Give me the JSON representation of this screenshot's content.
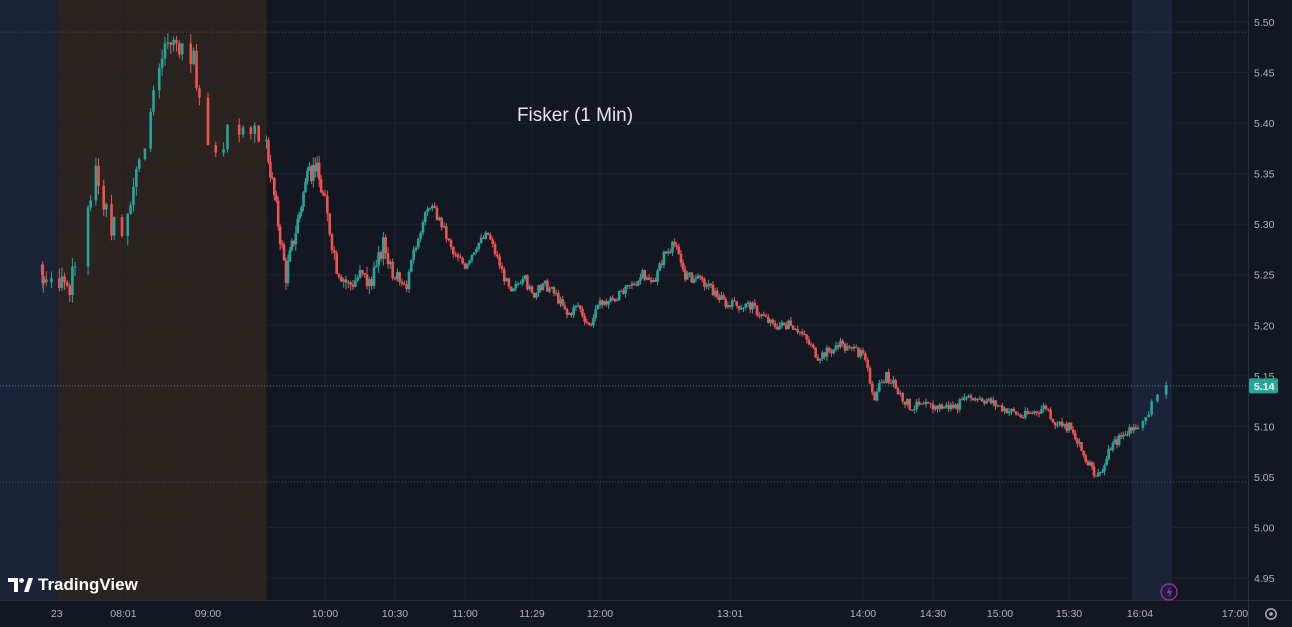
{
  "chart_data": {
    "type": "candlestick",
    "title": "Fisker (1 Min)",
    "ylim": [
      4.93,
      5.52
    ],
    "y_ticks": [
      "5.50",
      "5.45",
      "5.40",
      "5.35",
      "5.30",
      "5.25",
      "5.20",
      "5.15",
      "5.10",
      "5.05",
      "5.00",
      "4.95"
    ],
    "x_ticks": [
      "23",
      "08:01",
      "09:00",
      "10:00",
      "10:30",
      "11:00",
      "11:29",
      "12:00",
      "13:01",
      "14:00",
      "14:30",
      "15:00",
      "15:30",
      "16:04",
      "17:00"
    ],
    "sessions": [
      {
        "name": "overnight",
        "from": "04:00",
        "to": "07:10"
      },
      {
        "name": "pre-market",
        "from": "07:10",
        "to": "09:30"
      },
      {
        "name": "after-hours",
        "from": "16:00",
        "to": "16:15"
      }
    ],
    "reference_lines": [
      5.49,
      5.045
    ],
    "last_price": 5.14,
    "last_price_label": "5.14",
    "series_path": [
      [
        "04:00",
        5.25
      ],
      [
        "06:55",
        5.25
      ],
      [
        "07:10",
        5.25
      ],
      [
        "07:20",
        5.24
      ],
      [
        "07:30",
        5.28
      ],
      [
        "07:40",
        5.36
      ],
      [
        "07:50",
        5.3
      ],
      [
        "08:00",
        5.3
      ],
      [
        "08:10",
        5.35
      ],
      [
        "08:20",
        5.41
      ],
      [
        "08:30",
        5.48
      ],
      [
        "08:40",
        5.48
      ],
      [
        "08:50",
        5.46
      ],
      [
        "09:00",
        5.37
      ],
      [
        "09:15",
        5.4
      ],
      [
        "09:30",
        5.38
      ],
      [
        "09:40",
        5.25
      ],
      [
        "09:50",
        5.34
      ],
      [
        "09:55",
        5.36
      ],
      [
        "10:00",
        5.32
      ],
      [
        "10:05",
        5.26
      ],
      [
        "10:10",
        5.24
      ],
      [
        "10:15",
        5.25
      ],
      [
        "10:20",
        5.24
      ],
      [
        "10:25",
        5.28
      ],
      [
        "10:30",
        5.25
      ],
      [
        "10:35",
        5.24
      ],
      [
        "10:40",
        5.29
      ],
      [
        "10:45",
        5.32
      ],
      [
        "10:50",
        5.3
      ],
      [
        "10:55",
        5.27
      ],
      [
        "11:00",
        5.26
      ],
      [
        "11:05",
        5.28
      ],
      [
        "11:10",
        5.29
      ],
      [
        "11:15",
        5.26
      ],
      [
        "11:20",
        5.23
      ],
      [
        "11:25",
        5.25
      ],
      [
        "11:29",
        5.23
      ],
      [
        "11:35",
        5.24
      ],
      [
        "11:40",
        5.23
      ],
      [
        "11:45",
        5.21
      ],
      [
        "11:50",
        5.22
      ],
      [
        "11:55",
        5.2
      ],
      [
        "12:00",
        5.22
      ],
      [
        "12:10",
        5.23
      ],
      [
        "12:20",
        5.25
      ],
      [
        "12:25",
        5.24
      ],
      [
        "12:30",
        5.27
      ],
      [
        "12:35",
        5.28
      ],
      [
        "12:40",
        5.25
      ],
      [
        "12:50",
        5.24
      ],
      [
        "13:00",
        5.22
      ],
      [
        "13:01",
        5.22
      ],
      [
        "13:10",
        5.22
      ],
      [
        "13:20",
        5.2
      ],
      [
        "13:30",
        5.2
      ],
      [
        "13:40",
        5.17
      ],
      [
        "13:50",
        5.18
      ],
      [
        "14:00",
        5.17
      ],
      [
        "14:05",
        5.13
      ],
      [
        "14:10",
        5.15
      ],
      [
        "14:20",
        5.12
      ],
      [
        "14:30",
        5.12
      ],
      [
        "14:40",
        5.12
      ],
      [
        "14:50",
        5.13
      ],
      [
        "15:00",
        5.12
      ],
      [
        "15:10",
        5.11
      ],
      [
        "15:20",
        5.12
      ],
      [
        "15:25",
        5.1
      ],
      [
        "15:30",
        5.1
      ],
      [
        "15:35",
        5.08
      ],
      [
        "15:40",
        5.06
      ],
      [
        "15:45",
        5.05
      ],
      [
        "15:50",
        5.08
      ],
      [
        "15:55",
        5.09
      ],
      [
        "16:00",
        5.1
      ],
      [
        "16:04",
        5.1
      ],
      [
        "16:08",
        5.12
      ],
      [
        "16:12",
        5.14
      ]
    ]
  },
  "header": {
    "title": "Fisker (1 Min)"
  },
  "brand": {
    "logo_text": "TradingView",
    "logo_icon": "tradingview-logo-icon"
  },
  "controls": {
    "settings_icon": "gear-icon",
    "lightning_icon": "lightning-icon"
  },
  "colors": {
    "background": "#131722",
    "grid": "#1e222d",
    "up": "#26a69a",
    "down": "#ef5350",
    "premarket_band": "#2a2320",
    "overnight_band": "#1a2338",
    "afterhours_band": "#1a2338",
    "axis_text": "#b2b5be",
    "price_badge": "#26a69a",
    "dotted_line": "#4a505c"
  }
}
